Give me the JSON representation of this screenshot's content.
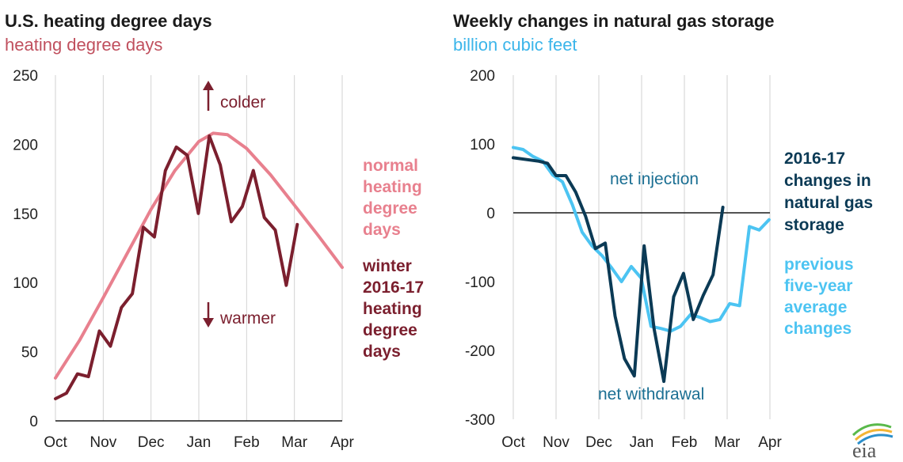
{
  "chart_data": [
    {
      "type": "line",
      "title": "U.S. heating degree days",
      "subtitle": "heating degree days",
      "x_tick_labels": [
        "Oct",
        "Nov",
        "Dec",
        "Jan",
        "Feb",
        "Mar",
        "Apr"
      ],
      "ylim": [
        0,
        250
      ],
      "y_ticks": [
        0,
        50,
        100,
        150,
        200,
        250
      ],
      "grid": "vertical",
      "annotations": {
        "up": "colder",
        "down": "warmer"
      },
      "colors": {
        "normal": "#e8808e",
        "winter": "#7b1f2e",
        "subtitle": "#c0505e"
      },
      "series": [
        {
          "name": "normal heating degree days",
          "label_lines": [
            "normal",
            "heating",
            "degree",
            "days"
          ],
          "x": [
            0.0,
            0.5,
            1.0,
            1.5,
            2.0,
            2.5,
            3.0,
            3.3,
            3.6,
            4.0,
            4.5,
            5.0,
            5.5,
            6.0
          ],
          "y": [
            31,
            58,
            89,
            121,
            153,
            181,
            202,
            208,
            207,
            197,
            178,
            156,
            134,
            111
          ]
        },
        {
          "name": "winter 2016-17 heating degree days",
          "label_lines": [
            "winter",
            "2016-17",
            "heating",
            "degree",
            "days"
          ],
          "x": [
            0.0,
            0.23,
            0.46,
            0.69,
            0.92,
            1.15,
            1.38,
            1.61,
            1.84,
            2.07,
            2.3,
            2.53,
            2.76,
            2.99,
            3.22,
            3.45,
            3.68,
            3.91,
            4.14,
            4.37,
            4.6,
            4.83,
            5.06
          ],
          "y": [
            16,
            20,
            34,
            32,
            65,
            54,
            82,
            92,
            140,
            133,
            181,
            198,
            192,
            150,
            206,
            185,
            144,
            155,
            181,
            147,
            138,
            98,
            142
          ]
        }
      ]
    },
    {
      "type": "line",
      "title": "Weekly changes in natural gas storage",
      "subtitle": "billion cubic feet",
      "x_tick_labels": [
        "Oct",
        "Nov",
        "Dec",
        "Jan",
        "Feb",
        "Mar",
        "Apr"
      ],
      "ylim": [
        -300,
        200
      ],
      "y_ticks": [
        -300,
        -200,
        -100,
        0,
        100,
        200
      ],
      "grid": "vertical",
      "annotations": {
        "above": "net injection",
        "below": "net withdrawal"
      },
      "colors": {
        "current": "#0b3a55",
        "average": "#4cc4f2",
        "subtitle": "#3bb5ea",
        "annotation": "#1b6f93"
      },
      "series": [
        {
          "name": "2016-17 changes in natural gas storage",
          "label_lines": [
            "2016-17",
            "changes in",
            "natural gas",
            "storage"
          ],
          "x": [
            0.0,
            0.6,
            0.8,
            1.0,
            1.23,
            1.46,
            1.69,
            1.92,
            2.15,
            2.38,
            2.6,
            2.83,
            3.06,
            3.29,
            3.52,
            3.75,
            3.98,
            4.21,
            4.44,
            4.67,
            4.9
          ],
          "y": [
            80,
            75,
            72,
            54,
            54,
            30,
            -5,
            -52,
            -44,
            -150,
            -212,
            -237,
            -48,
            -168,
            -245,
            -122,
            -88,
            -155,
            -120,
            -90,
            8
          ]
        },
        {
          "name": "previous five-year average changes",
          "label_lines": [
            "previous",
            "five-year",
            "average",
            "changes"
          ],
          "x": [
            0.0,
            0.23,
            0.46,
            0.69,
            0.92,
            1.15,
            1.38,
            1.61,
            1.84,
            2.07,
            2.3,
            2.53,
            2.76,
            2.99,
            3.22,
            3.45,
            3.68,
            3.91,
            4.14,
            4.37,
            4.6,
            4.83,
            5.06,
            5.29,
            5.52,
            5.75,
            5.98
          ],
          "y": [
            95,
            92,
            82,
            75,
            55,
            45,
            12,
            -28,
            -48,
            -62,
            -80,
            -100,
            -78,
            -95,
            -165,
            -168,
            -172,
            -165,
            -148,
            -152,
            -158,
            -155,
            -132,
            -135,
            -20,
            -25,
            -10
          ]
        }
      ]
    }
  ],
  "logo_text": "eia"
}
